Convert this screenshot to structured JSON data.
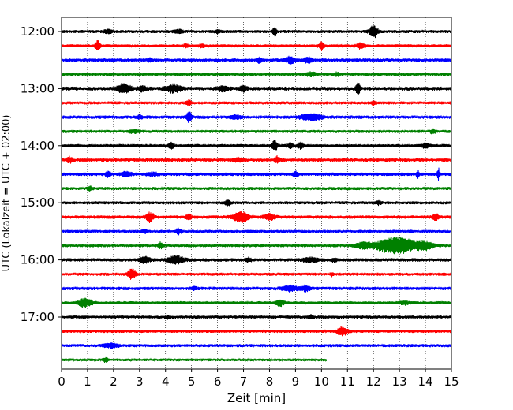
{
  "chart_data": {
    "type": "line",
    "subtype": "helicorder",
    "title": "",
    "xlabel": "Zeit  [min]",
    "ylabel": "UTC (Lokalzeit = UTC + 02:00)",
    "xlim": [
      0,
      15
    ],
    "x_ticks": [
      0,
      1,
      2,
      3,
      4,
      5,
      6,
      7,
      8,
      9,
      10,
      11,
      12,
      13,
      14,
      15
    ],
    "x_tick_labels": [
      "0",
      "1",
      "2",
      "3",
      "4",
      "5",
      "6",
      "7",
      "8",
      "9",
      "10",
      "11",
      "12",
      "13",
      "14",
      "15"
    ],
    "y_ticks": [
      {
        "row": 0,
        "label": "12:00"
      },
      {
        "row": 4,
        "label": "13:00"
      },
      {
        "row": 8,
        "label": "14:00"
      },
      {
        "row": 12,
        "label": "15:00"
      },
      {
        "row": 16,
        "label": "16:00"
      },
      {
        "row": 20,
        "label": "17:00"
      }
    ],
    "grid": {
      "vertical": true,
      "style": "dotted"
    },
    "row_minutes": 15,
    "color_cycle": [
      "#000000",
      "#ff0000",
      "#0000ff",
      "#008000"
    ],
    "traces": [
      {
        "row": 0,
        "start": "12:00",
        "end_minute": 15,
        "noise": 0.2,
        "events": [
          [
            1.8,
            0.35,
            0.15
          ],
          [
            4.5,
            0.35,
            0.15
          ],
          [
            8.2,
            0.9,
            0.08
          ],
          [
            12.0,
            1.2,
            0.15
          ],
          [
            6.0,
            0.3,
            0.1
          ]
        ]
      },
      {
        "row": 1,
        "start": "12:15",
        "end_minute": 15,
        "noise": 0.2,
        "events": [
          [
            1.4,
            0.9,
            0.1
          ],
          [
            4.8,
            0.3,
            0.1
          ],
          [
            10.0,
            0.7,
            0.1
          ],
          [
            11.5,
            0.45,
            0.15
          ],
          [
            5.4,
            0.3,
            0.1
          ]
        ]
      },
      {
        "row": 2,
        "start": "12:30",
        "end_minute": 15,
        "noise": 0.22,
        "events": [
          [
            7.6,
            0.4,
            0.1
          ],
          [
            8.8,
            0.6,
            0.2
          ],
          [
            9.5,
            0.5,
            0.15
          ],
          [
            3.4,
            0.25,
            0.1
          ]
        ]
      },
      {
        "row": 3,
        "start": "12:45",
        "end_minute": 15,
        "noise": 0.2,
        "events": [
          [
            9.6,
            0.35,
            0.2
          ],
          [
            10.6,
            0.3,
            0.1
          ]
        ]
      },
      {
        "row": 4,
        "start": "13:00",
        "end_minute": 15,
        "noise": 0.25,
        "events": [
          [
            2.4,
            0.8,
            0.25
          ],
          [
            3.1,
            0.5,
            0.15
          ],
          [
            4.3,
            0.7,
            0.3
          ],
          [
            6.2,
            0.45,
            0.2
          ],
          [
            7.0,
            0.5,
            0.15
          ],
          [
            11.4,
            1.2,
            0.08
          ]
        ]
      },
      {
        "row": 5,
        "start": "13:15",
        "end_minute": 15,
        "noise": 0.2,
        "events": [
          [
            4.9,
            0.5,
            0.1
          ],
          [
            12.0,
            0.3,
            0.1
          ]
        ]
      },
      {
        "row": 6,
        "start": "13:30",
        "end_minute": 15,
        "noise": 0.22,
        "events": [
          [
            4.9,
            0.9,
            0.1
          ],
          [
            9.6,
            0.6,
            0.4
          ],
          [
            6.7,
            0.3,
            0.2
          ],
          [
            3.0,
            0.3,
            0.1
          ]
        ]
      },
      {
        "row": 7,
        "start": "13:45",
        "end_minute": 15,
        "noise": 0.2,
        "events": [
          [
            2.8,
            0.3,
            0.2
          ],
          [
            14.3,
            0.4,
            0.1
          ]
        ]
      },
      {
        "row": 8,
        "start": "14:00",
        "end_minute": 15,
        "noise": 0.22,
        "events": [
          [
            4.2,
            0.6,
            0.1
          ],
          [
            8.2,
            1.0,
            0.1
          ],
          [
            8.8,
            0.5,
            0.1
          ],
          [
            9.2,
            0.5,
            0.1
          ],
          [
            14.0,
            0.4,
            0.15
          ]
        ]
      },
      {
        "row": 9,
        "start": "14:15",
        "end_minute": 15,
        "noise": 0.22,
        "events": [
          [
            0.3,
            0.6,
            0.1
          ],
          [
            8.3,
            0.7,
            0.1
          ],
          [
            6.8,
            0.3,
            0.2
          ]
        ]
      },
      {
        "row": 10,
        "start": "14:30",
        "end_minute": 15,
        "noise": 0.22,
        "events": [
          [
            1.8,
            0.5,
            0.1
          ],
          [
            2.5,
            0.45,
            0.2
          ],
          [
            9.0,
            0.45,
            0.1
          ],
          [
            13.7,
            0.8,
            0.05
          ],
          [
            14.5,
            1.0,
            0.05
          ],
          [
            3.5,
            0.3,
            0.2
          ]
        ]
      },
      {
        "row": 11,
        "start": "14:45",
        "end_minute": 15,
        "noise": 0.2,
        "events": [
          [
            1.1,
            0.35,
            0.1
          ]
        ]
      },
      {
        "row": 12,
        "start": "15:00",
        "end_minute": 15,
        "noise": 0.2,
        "events": [
          [
            6.4,
            0.55,
            0.1
          ],
          [
            12.2,
            0.3,
            0.1
          ]
        ]
      },
      {
        "row": 13,
        "start": "15:15",
        "end_minute": 15,
        "noise": 0.22,
        "events": [
          [
            3.4,
            0.9,
            0.15
          ],
          [
            4.9,
            0.5,
            0.1
          ],
          [
            6.9,
            0.9,
            0.3
          ],
          [
            8.0,
            0.6,
            0.2
          ],
          [
            14.4,
            0.6,
            0.1
          ]
        ]
      },
      {
        "row": 14,
        "start": "15:30",
        "end_minute": 15,
        "noise": 0.2,
        "events": [
          [
            4.5,
            0.5,
            0.1
          ],
          [
            3.2,
            0.3,
            0.1
          ]
        ]
      },
      {
        "row": 15,
        "start": "15:45",
        "end_minute": 15,
        "noise": 0.2,
        "events": [
          [
            3.8,
            0.5,
            0.1
          ],
          [
            12.9,
            1.5,
            0.8
          ],
          [
            11.6,
            0.5,
            0.3
          ],
          [
            14.0,
            0.6,
            0.3
          ]
        ]
      },
      {
        "row": 16,
        "start": "16:00",
        "end_minute": 15,
        "noise": 0.22,
        "events": [
          [
            3.2,
            0.6,
            0.2
          ],
          [
            4.4,
            0.7,
            0.3
          ],
          [
            7.2,
            0.35,
            0.1
          ],
          [
            9.6,
            0.4,
            0.3
          ],
          [
            10.5,
            0.3,
            0.1
          ]
        ]
      },
      {
        "row": 17,
        "start": "16:15",
        "end_minute": 15,
        "noise": 0.2,
        "events": [
          [
            2.7,
            0.9,
            0.15
          ],
          [
            10.4,
            0.35,
            0.05
          ]
        ]
      },
      {
        "row": 18,
        "start": "16:30",
        "end_minute": 15,
        "noise": 0.22,
        "events": [
          [
            8.8,
            0.5,
            0.3
          ],
          [
            9.4,
            0.5,
            0.15
          ],
          [
            5.1,
            0.3,
            0.1
          ]
        ]
      },
      {
        "row": 19,
        "start": "16:45",
        "end_minute": 15,
        "noise": 0.2,
        "events": [
          [
            0.9,
            0.8,
            0.25
          ],
          [
            8.4,
            0.6,
            0.15
          ],
          [
            13.2,
            0.3,
            0.2
          ]
        ]
      },
      {
        "row": 20,
        "start": "17:00",
        "end_minute": 15,
        "noise": 0.2,
        "events": [
          [
            4.1,
            0.3,
            0.05
          ],
          [
            9.6,
            0.3,
            0.1
          ]
        ]
      },
      {
        "row": 21,
        "start": "17:15",
        "end_minute": 15,
        "noise": 0.2,
        "events": [
          [
            10.8,
            0.8,
            0.2
          ]
        ]
      },
      {
        "row": 22,
        "start": "17:30",
        "end_minute": 15,
        "noise": 0.2,
        "events": [
          [
            1.9,
            0.4,
            0.3
          ]
        ]
      },
      {
        "row": 23,
        "start": "17:45",
        "end_minute": 10.2,
        "noise": 0.18,
        "events": [
          [
            1.7,
            0.35,
            0.1
          ]
        ]
      }
    ]
  }
}
